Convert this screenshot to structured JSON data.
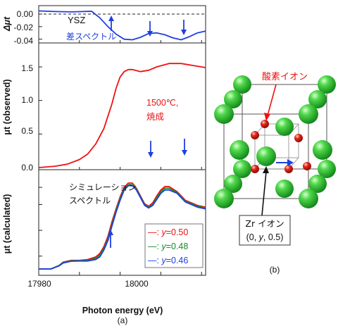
{
  "chart_data": [
    {
      "type": "line",
      "ylabel": "Δμt",
      "ylim": [
        -0.05,
        0.01
      ],
      "yticks": [
        "0.00",
        "-0.02",
        "-0.04"
      ],
      "annotations": [
        "YSZ",
        "差スペクトル"
      ],
      "zero_line": "dashed",
      "series": [
        {
          "color": "#1f3fe0",
          "x": [
            17980,
            17984,
            17988,
            17991,
            17993,
            17995,
            17997,
            17999,
            18001,
            18003,
            18005,
            18007,
            18009,
            18011,
            18013,
            18015,
            18017,
            18019,
            18021
          ],
          "y": [
            0.005,
            0.004,
            0.0035,
            0.004,
            0.0045,
            -0.006,
            -0.02,
            -0.032,
            -0.04,
            -0.041,
            -0.037,
            -0.031,
            -0.03,
            -0.033,
            -0.038,
            -0.041,
            -0.036,
            -0.03,
            -0.027
          ]
        }
      ]
    },
    {
      "type": "line",
      "ylabel": "μt (observed)",
      "ylim": [
        -0.05,
        1.6
      ],
      "yticks": [
        "0.0",
        "0.5",
        "1.0",
        "1.5"
      ],
      "annotations": [
        "1500℃,",
        "焼成"
      ],
      "series": [
        {
          "color": "#e11",
          "x": [
            17980,
            17984,
            17987,
            17990,
            17992,
            17994,
            17996,
            17998,
            17999,
            18000,
            18001,
            18002,
            18003,
            18005,
            18007,
            18009,
            18012,
            18015,
            18018,
            18021
          ],
          "y": [
            0.0,
            0.02,
            0.05,
            0.12,
            0.2,
            0.35,
            0.58,
            0.95,
            1.18,
            1.35,
            1.43,
            1.46,
            1.46,
            1.43,
            1.45,
            1.5,
            1.55,
            1.55,
            1.52,
            1.49
          ]
        }
      ]
    },
    {
      "type": "line",
      "xlabel": "Photon energy (eV)",
      "ylabel": "μt (calculated)",
      "xlim": [
        17980,
        18021
      ],
      "xticks": [
        "17980",
        "18000"
      ],
      "annotations": [
        "シミュレーション",
        "スペクトル"
      ],
      "legend_position": "lower-right",
      "legend": [
        {
          "prefix": "—: ",
          "var": "y",
          "rest": "=0.50",
          "color": "#e11"
        },
        {
          "prefix": "—: ",
          "var": "y",
          "rest": "=0.48",
          "color": "#1a8a2a"
        },
        {
          "prefix": "—: ",
          "var": "y",
          "rest": "=0.46",
          "color": "#1f3fe0"
        }
      ],
      "series": [
        {
          "color": "#e11",
          "x": [
            17980,
            17983,
            17985,
            17986,
            17988,
            17990,
            17992,
            17994,
            17995,
            17996,
            17997,
            17998,
            17999,
            18000,
            18001,
            18002,
            18003,
            18004,
            18005,
            18006,
            18007,
            18008,
            18009,
            18010,
            18011,
            18012,
            18014,
            18016,
            18019,
            18021
          ],
          "y": [
            0.0,
            0.0,
            0.04,
            0.08,
            0.1,
            0.1,
            0.11,
            0.14,
            0.18,
            0.26,
            0.38,
            0.55,
            0.7,
            0.84,
            0.95,
            1.0,
            1.0,
            0.94,
            0.85,
            0.76,
            0.73,
            0.77,
            0.85,
            0.92,
            0.96,
            0.96,
            0.9,
            0.8,
            0.74,
            0.72
          ]
        },
        {
          "color": "#1a8a2a",
          "x": [
            17980,
            17983,
            17985,
            17986,
            17988,
            17990,
            17992,
            17994,
            17995,
            17996,
            17997,
            17998,
            17999,
            18000,
            18001,
            18002,
            18003,
            18004,
            18005,
            18006,
            18007,
            18008,
            18009,
            18010,
            18011,
            18012,
            18014,
            18016,
            18019,
            18021
          ],
          "y": [
            0.0,
            0.0,
            0.04,
            0.075,
            0.095,
            0.097,
            0.1,
            0.125,
            0.16,
            0.24,
            0.35,
            0.52,
            0.68,
            0.82,
            0.93,
            0.98,
            0.98,
            0.93,
            0.84,
            0.75,
            0.72,
            0.75,
            0.83,
            0.9,
            0.94,
            0.94,
            0.89,
            0.79,
            0.73,
            0.71
          ]
        },
        {
          "color": "#1f3fe0",
          "x": [
            17980,
            17983,
            17985,
            17986,
            17988,
            17990,
            17992,
            17994,
            17995,
            17996,
            17997,
            17998,
            17999,
            18000,
            18001,
            18002,
            18003,
            18004,
            18005,
            18006,
            18007,
            18008,
            18009,
            18010,
            18011,
            18012,
            18014,
            18016,
            18019,
            18021
          ],
          "y": [
            0.0,
            0.0,
            0.035,
            0.07,
            0.09,
            0.093,
            0.093,
            0.11,
            0.14,
            0.22,
            0.33,
            0.5,
            0.66,
            0.8,
            0.92,
            0.97,
            0.97,
            0.92,
            0.83,
            0.74,
            0.71,
            0.74,
            0.81,
            0.88,
            0.92,
            0.92,
            0.88,
            0.78,
            0.72,
            0.7
          ]
        }
      ]
    }
  ],
  "figure": {
    "xlabel": "Photon energy (eV)",
    "label_a": "(a)",
    "label_b": "(b)",
    "oxygen_label": "酸素イオン",
    "zr_line1": "Zr イオン",
    "zr_line2_prefix": "(0, ",
    "zr_line2_var": "y",
    "zr_line2_suffix": ", 0.5)",
    "oxygen_color": "#e8231a",
    "zr_color": "#2fc12f"
  }
}
